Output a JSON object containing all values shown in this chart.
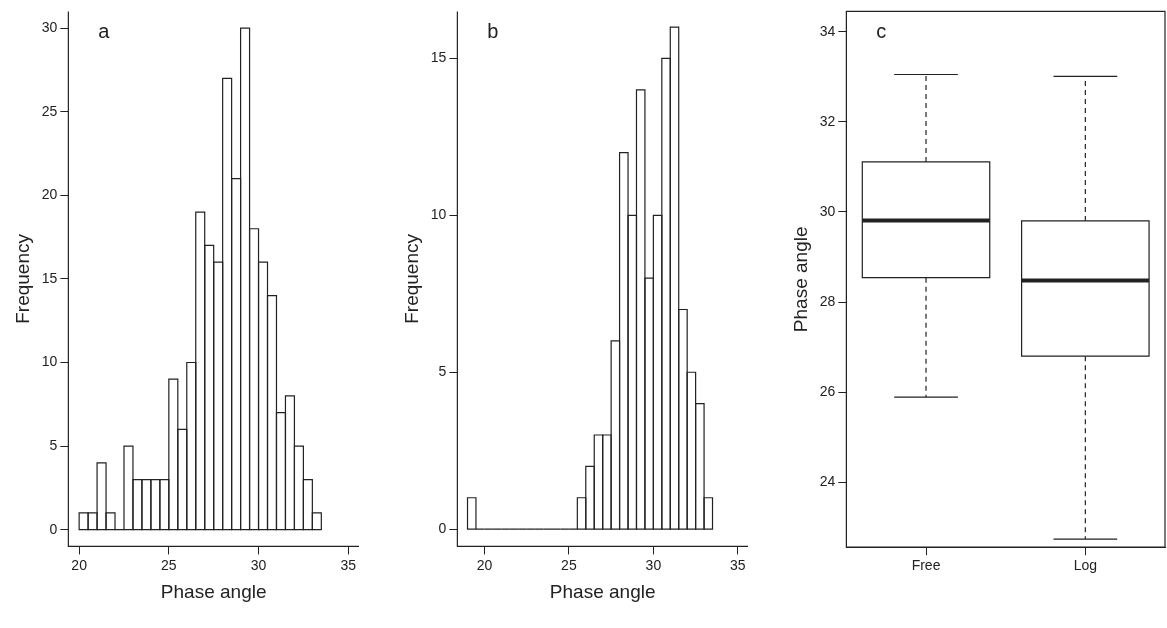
{
  "chart_data": [
    {
      "type": "histogram",
      "title": "a",
      "xlabel": "Phase angle",
      "ylabel": "Frequency",
      "color": "#ffffff",
      "bins": [
        20,
        20.5,
        21,
        21.5,
        22,
        22.5,
        23,
        23.5,
        24,
        24.5,
        25,
        25.5,
        26,
        26.5,
        27,
        27.5,
        28,
        28.5,
        29,
        29.5,
        30,
        30.5,
        31,
        31.5,
        32,
        32.5,
        33,
        33.5
      ],
      "values": [
        1,
        1,
        4,
        1,
        0,
        5,
        3,
        3,
        3,
        3,
        9,
        6,
        10,
        19,
        17,
        16,
        27,
        21,
        30,
        18,
        16,
        14,
        7,
        8,
        5,
        3,
        1
      ],
      "xlim": [
        19.4,
        35.6
      ],
      "xticks": [
        20,
        25,
        30,
        35
      ],
      "ylim": [
        -1,
        31
      ],
      "yticks": [
        0,
        5,
        10,
        15,
        20,
        25,
        30
      ]
    },
    {
      "type": "histogram",
      "title": "b",
      "xlabel": "Phase angle",
      "ylabel": "Frequency",
      "color": "#ffffff",
      "bins": [
        19,
        19.5,
        20,
        20.5,
        21,
        21.5,
        22,
        22.5,
        23,
        23.5,
        24,
        24.5,
        25,
        25.5,
        26,
        26.5,
        27,
        27.5,
        28,
        28.5,
        29,
        29.5,
        30,
        30.5,
        31,
        31.5,
        32,
        32.5,
        33,
        33.5
      ],
      "values": [
        1,
        0,
        0,
        0,
        0,
        0,
        0,
        0,
        0,
        0,
        0,
        0,
        0,
        1,
        2,
        3,
        3,
        6,
        12,
        10,
        14,
        8,
        10,
        15,
        16,
        7,
        5,
        4,
        1
      ],
      "xlim": [
        18.4,
        35.6
      ],
      "xticks": [
        20,
        25,
        30,
        35
      ],
      "ylim": [
        -0.55,
        16.5
      ],
      "yticks": [
        0,
        5,
        10,
        15
      ]
    },
    {
      "type": "box",
      "title": "c",
      "ylabel": "Phase angle",
      "categories": [
        "Free",
        "Log"
      ],
      "boxes": [
        {
          "low": 25.89,
          "q1": 28.54,
          "median": 29.81,
          "q3": 31.11,
          "high": 33.05
        },
        {
          "low": 22.74,
          "q1": 26.8,
          "median": 28.48,
          "q3": 29.8,
          "high": 33.01
        }
      ],
      "ylim": [
        22.56,
        34.45
      ],
      "yticks": [
        24,
        26,
        28,
        30,
        32,
        34
      ]
    }
  ]
}
